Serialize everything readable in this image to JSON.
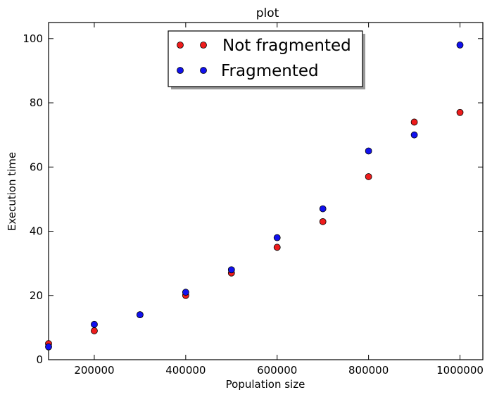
{
  "chart_data": {
    "type": "scatter",
    "title": "plot",
    "xlabel": "Population size",
    "ylabel": "Execution time",
    "xlim": [
      100000,
      1050000
    ],
    "ylim": [
      0,
      105
    ],
    "xticks": [
      200000,
      400000,
      600000,
      800000,
      1000000
    ],
    "xtick_labels": [
      "200000",
      "400000",
      "600000",
      "800000",
      "1000000"
    ],
    "yticks": [
      0,
      20,
      40,
      60,
      80,
      100
    ],
    "ytick_labels": [
      "0",
      "20",
      "40",
      "60",
      "80",
      "100"
    ],
    "grid": false,
    "legend_position": "top-center",
    "series": [
      {
        "name": "Not fragmented",
        "color": "#ee1c1c",
        "x": [
          100000,
          200000,
          300000,
          400000,
          500000,
          600000,
          700000,
          800000,
          900000,
          1000000
        ],
        "y": [
          5,
          9,
          14,
          20,
          27,
          35,
          43,
          57,
          74,
          77
        ]
      },
      {
        "name": "Fragmented",
        "color": "#1111ee",
        "x": [
          100000,
          200000,
          300000,
          400000,
          500000,
          600000,
          700000,
          800000,
          900000,
          1000000
        ],
        "y": [
          4,
          11,
          14,
          21,
          28,
          38,
          47,
          65,
          70,
          98
        ]
      }
    ]
  }
}
